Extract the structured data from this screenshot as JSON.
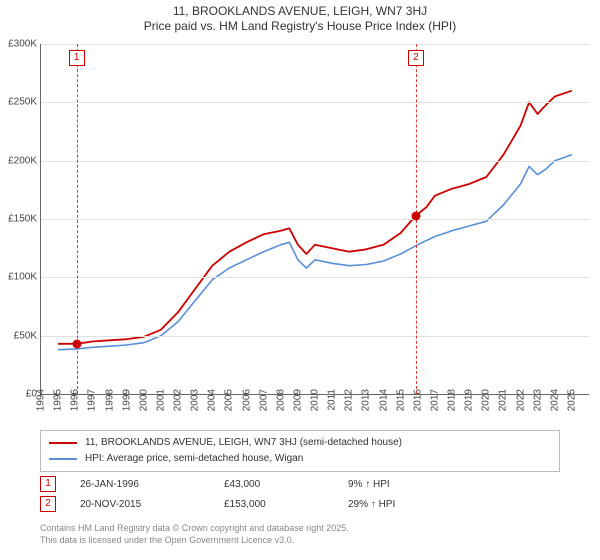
{
  "title": {
    "line1": "11, BROOKLANDS AVENUE, LEIGH, WN7 3HJ",
    "line2": "Price paid vs. HM Land Registry's House Price Index (HPI)"
  },
  "chart": {
    "type": "line",
    "background_color": "#ffffff",
    "grid_color": "#e0e0e0",
    "axis_color": "#666666",
    "fontsize_tick": 10,
    "fontsize_title": 12,
    "x_years": [
      1994,
      1995,
      1996,
      1997,
      1998,
      1999,
      2000,
      2001,
      2002,
      2003,
      2004,
      2005,
      2006,
      2007,
      2008,
      2009,
      2010,
      2011,
      2012,
      2013,
      2014,
      2015,
      2016,
      2017,
      2018,
      2019,
      2020,
      2021,
      2022,
      2023,
      2024,
      2025
    ],
    "xlim": [
      1994,
      2026
    ],
    "ylim": [
      0,
      300000
    ],
    "ytick_step": 50000,
    "yticks": [
      "£0",
      "£50K",
      "£100K",
      "£150K",
      "£200K",
      "£250K",
      "£300K"
    ],
    "series": [
      {
        "name": "11, BROOKLANDS AVENUE, LEIGH, WN7 3HJ (semi-detached house)",
        "color": "#cc0000",
        "width": 1.8,
        "points": [
          [
            1995.0,
            43000
          ],
          [
            1996.08,
            43000
          ],
          [
            1997.0,
            45000
          ],
          [
            1998.0,
            46000
          ],
          [
            1999.0,
            47000
          ],
          [
            2000.0,
            49000
          ],
          [
            2001.0,
            55000
          ],
          [
            2002.0,
            70000
          ],
          [
            2003.0,
            90000
          ],
          [
            2004.0,
            110000
          ],
          [
            2005.0,
            122000
          ],
          [
            2006.0,
            130000
          ],
          [
            2007.0,
            137000
          ],
          [
            2008.0,
            140000
          ],
          [
            2008.5,
            142000
          ],
          [
            2009.0,
            128000
          ],
          [
            2009.5,
            120000
          ],
          [
            2010.0,
            128000
          ],
          [
            2011.0,
            125000
          ],
          [
            2012.0,
            122000
          ],
          [
            2013.0,
            124000
          ],
          [
            2014.0,
            128000
          ],
          [
            2015.0,
            138000
          ],
          [
            2015.89,
            153000
          ],
          [
            2016.5,
            160000
          ],
          [
            2017.0,
            170000
          ],
          [
            2018.0,
            176000
          ],
          [
            2019.0,
            180000
          ],
          [
            2020.0,
            186000
          ],
          [
            2021.0,
            205000
          ],
          [
            2022.0,
            230000
          ],
          [
            2022.5,
            250000
          ],
          [
            2023.0,
            240000
          ],
          [
            2023.5,
            248000
          ],
          [
            2024.0,
            255000
          ],
          [
            2025.0,
            260000
          ]
        ]
      },
      {
        "name": "HPI: Average price, semi-detached house, Wigan",
        "color": "#5b8fd6",
        "width": 1.6,
        "points": [
          [
            1995.0,
            38000
          ],
          [
            1996.0,
            38500
          ],
          [
            1997.0,
            40000
          ],
          [
            1998.0,
            41000
          ],
          [
            1999.0,
            42000
          ],
          [
            2000.0,
            44000
          ],
          [
            2001.0,
            50000
          ],
          [
            2002.0,
            62000
          ],
          [
            2003.0,
            80000
          ],
          [
            2004.0,
            98000
          ],
          [
            2005.0,
            108000
          ],
          [
            2006.0,
            115000
          ],
          [
            2007.0,
            122000
          ],
          [
            2008.0,
            128000
          ],
          [
            2008.5,
            130000
          ],
          [
            2009.0,
            115000
          ],
          [
            2009.5,
            108000
          ],
          [
            2010.0,
            115000
          ],
          [
            2011.0,
            112000
          ],
          [
            2012.0,
            110000
          ],
          [
            2013.0,
            111000
          ],
          [
            2014.0,
            114000
          ],
          [
            2015.0,
            120000
          ],
          [
            2016.0,
            128000
          ],
          [
            2017.0,
            135000
          ],
          [
            2018.0,
            140000
          ],
          [
            2019.0,
            144000
          ],
          [
            2020.0,
            148000
          ],
          [
            2021.0,
            162000
          ],
          [
            2022.0,
            180000
          ],
          [
            2022.5,
            195000
          ],
          [
            2023.0,
            188000
          ],
          [
            2023.5,
            193000
          ],
          [
            2024.0,
            200000
          ],
          [
            2025.0,
            205000
          ]
        ]
      }
    ],
    "markers": [
      {
        "id": "1",
        "x": 1996.08,
        "y": 43000
      },
      {
        "id": "2",
        "x": 2015.89,
        "y": 153000
      }
    ],
    "marker_color": "#cc0000",
    "marker_dot_size": 9
  },
  "legend": {
    "border_color": "#bbbbbb",
    "fontsize": 10
  },
  "transactions": [
    {
      "id": "1",
      "date": "26-JAN-1996",
      "price": "£43,000",
      "pct": "9% ↑ HPI"
    },
    {
      "id": "2",
      "date": "20-NOV-2015",
      "price": "£153,000",
      "pct": "29% ↑ HPI"
    }
  ],
  "footer": {
    "line1": "Contains HM Land Registry data © Crown copyright and database right 2025.",
    "line2": "This data is licensed under the Open Government Licence v3.0."
  }
}
